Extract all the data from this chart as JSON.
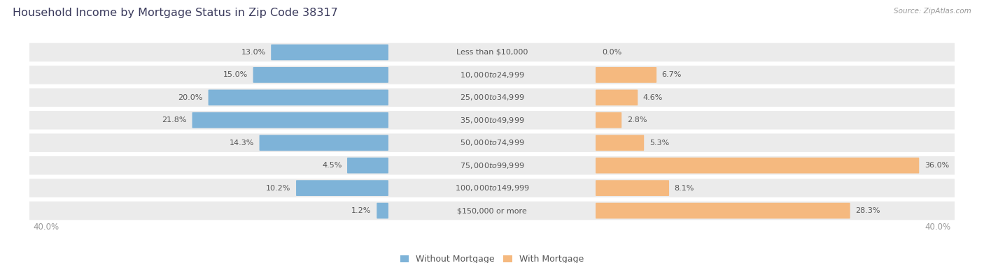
{
  "title": "Household Income by Mortgage Status in Zip Code 38317",
  "source": "Source: ZipAtlas.com",
  "categories": [
    "Less than $10,000",
    "$10,000 to $24,999",
    "$25,000 to $34,999",
    "$35,000 to $49,999",
    "$50,000 to $74,999",
    "$75,000 to $99,999",
    "$100,000 to $149,999",
    "$150,000 or more"
  ],
  "without_mortgage": [
    13.0,
    15.0,
    20.0,
    21.8,
    14.3,
    4.5,
    10.2,
    1.2
  ],
  "with_mortgage": [
    0.0,
    6.7,
    4.6,
    2.8,
    5.3,
    36.0,
    8.1,
    28.3
  ],
  "color_without": "#7EB3D8",
  "color_with": "#F5B97F",
  "axis_limit": 40.0,
  "label_span": 18.0,
  "bg_bar": "#ebebeb",
  "bg_main": "#ffffff",
  "title_color": "#3a3a5c",
  "value_color": "#555555",
  "axis_label_color": "#999999",
  "source_color": "#999999",
  "legend_labels": [
    "Without Mortgage",
    "With Mortgage"
  ],
  "title_fontsize": 11.5,
  "bar_height": 0.62,
  "value_fontsize": 8.0,
  "cat_fontsize": 8.0
}
